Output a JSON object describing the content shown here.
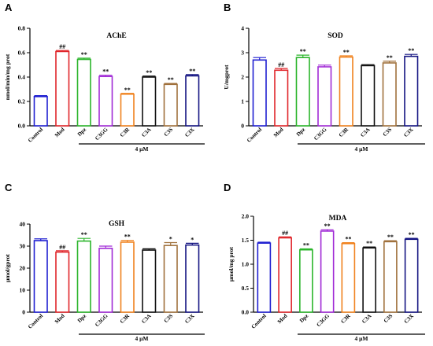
{
  "series_colors": [
    "#1f1fd1",
    "#e0262b",
    "#2bb52b",
    "#a12bd6",
    "#f0821e",
    "#111111",
    "#a0713c",
    "#141482"
  ],
  "chart_data": [
    {
      "panel": "A",
      "type": "bar",
      "title": "AChE",
      "ylabel": "nmol/min/mg prot",
      "ylim": [
        0.0,
        0.8
      ],
      "yticks": [
        "0.0",
        "0.2",
        "0.4",
        "0.6",
        "0.8"
      ],
      "categories": [
        "Control",
        "Mod",
        "Dpz",
        "C3GG",
        "C3R",
        "C3A",
        "C3S",
        "C3X"
      ],
      "values": [
        0.24,
        0.61,
        0.545,
        0.405,
        0.26,
        0.4,
        0.34,
        0.41
      ],
      "errors": [
        0.008,
        0.008,
        0.01,
        0.01,
        0.006,
        0.008,
        0.008,
        0.01
      ],
      "annotations": [
        "",
        "##",
        "**",
        "**",
        "**",
        "**",
        "**",
        "**"
      ],
      "group_label": "4 μM"
    },
    {
      "panel": "B",
      "type": "bar",
      "title": "SOD",
      "ylabel": "U/mgprot",
      "ylim": [
        0,
        4
      ],
      "yticks": [
        "0",
        "1",
        "2",
        "3",
        "4"
      ],
      "categories": [
        "Control",
        "Mod",
        "Dpz",
        "C3GG",
        "C3R",
        "C3A",
        "C3S",
        "C3X"
      ],
      "values": [
        2.7,
        2.28,
        2.8,
        2.42,
        2.82,
        2.47,
        2.58,
        2.85
      ],
      "errors": [
        0.1,
        0.07,
        0.1,
        0.07,
        0.05,
        0.04,
        0.07,
        0.08
      ],
      "annotations": [
        "",
        "##",
        "**",
        "",
        "**",
        "",
        "**",
        "**"
      ],
      "group_label": "4 μM"
    },
    {
      "panel": "C",
      "type": "bar",
      "title": "GSH",
      "ylabel": "μmol/gprot",
      "ylim": [
        0,
        40
      ],
      "yticks": [
        "0",
        "10",
        "20",
        "30",
        "40"
      ],
      "categories": [
        "Control",
        "Mod",
        "Dpz",
        "C3GG",
        "C3R",
        "C3A",
        "C3S",
        "C3X"
      ],
      "values": [
        32.5,
        27.3,
        32.3,
        29.0,
        31.8,
        28.2,
        30.3,
        30.5
      ],
      "errors": [
        0.8,
        0.6,
        1.2,
        1.0,
        0.8,
        0.6,
        1.3,
        0.8
      ],
      "annotations": [
        "",
        "##",
        "**",
        "",
        "**",
        "",
        "*",
        "*"
      ],
      "group_label": "4 μM"
    },
    {
      "panel": "D",
      "type": "bar",
      "title": "MDA",
      "ylabel": "μmol/mg prot",
      "ylim": [
        0.0,
        2.0
      ],
      "yticks": [
        "0.0",
        "0.5",
        "1.0",
        "1.5",
        "2.0"
      ],
      "categories": [
        "Control",
        "Mod",
        "Dpz",
        "C3GG",
        "C3R",
        "C3A",
        "C3S",
        "C3X"
      ],
      "values": [
        1.44,
        1.55,
        1.3,
        1.69,
        1.43,
        1.34,
        1.47,
        1.52
      ],
      "errors": [
        0.02,
        0.02,
        0.02,
        0.03,
        0.02,
        0.02,
        0.02,
        0.02
      ],
      "annotations": [
        "",
        "##",
        "**",
        "**",
        "**",
        "**",
        "**",
        "**"
      ],
      "group_label": "4 μM"
    }
  ]
}
